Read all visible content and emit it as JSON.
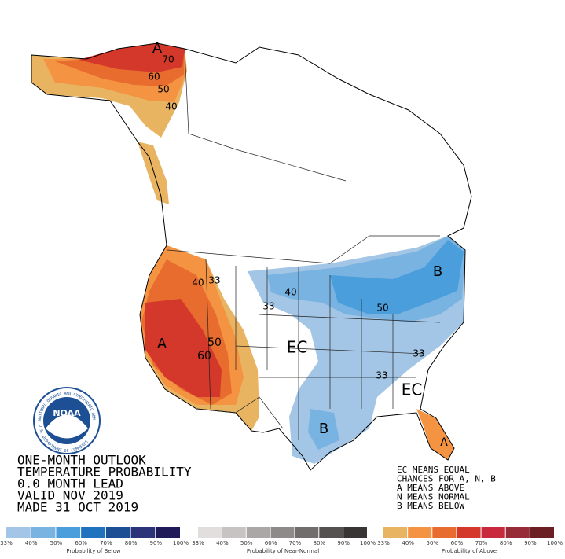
{
  "outlook_text": [
    "ONE-MONTH OUTLOOK",
    "TEMPERATURE PROBABILITY",
    "0.0 MONTH LEAD",
    "VALID NOV 2019",
    "MADE 31 OCT 2019"
  ],
  "key_text": [
    "EC MEANS EQUAL",
    "CHANCES FOR A, N, B",
    "A MEANS ABOVE",
    "N MEANS NORMAL",
    "B MEANS BELOW"
  ],
  "logo": {
    "name": "NOAA",
    "ring_top": "NATIONAL OCEANIC AND ATMOSPHERIC ADMINISTRATION",
    "ring_bottom": "U.S. DEPARTMENT OF COMMERCE"
  },
  "map_labels": [
    "A",
    "70",
    "60",
    "50",
    "40",
    "40",
    "33",
    "A",
    "50",
    "60",
    "33",
    "40",
    "50",
    "B",
    "EC",
    "33",
    "33",
    "EC",
    "B",
    "A"
  ],
  "legend": [
    {
      "title": "Probability of Below",
      "ticks": [
        "33%",
        "40%",
        "50%",
        "60%",
        "70%",
        "80%",
        "90%",
        "100%"
      ],
      "colors": [
        "#a3c6e6",
        "#79b3e2",
        "#4a9edc",
        "#1f72bd",
        "#1d4f94",
        "#2c3479",
        "#201a58"
      ]
    },
    {
      "title": "Probability of Near-Normal",
      "ticks": [
        "33%",
        "40%",
        "50%",
        "60%",
        "70%",
        "80%",
        "90%",
        "100%"
      ],
      "colors": [
        "#e2dede",
        "#c7c3c3",
        "#aba7a7",
        "#8e8a8a",
        "#716d6d",
        "#555151",
        "#393535"
      ]
    },
    {
      "title": "Probability of Above",
      "ticks": [
        "33%",
        "40%",
        "50%",
        "60%",
        "70%",
        "80%",
        "90%",
        "100%"
      ],
      "colors": [
        "#e9b462",
        "#f49442",
        "#e86c2d",
        "#d4382a",
        "#c9293d",
        "#972b37",
        "#6b1f23"
      ]
    }
  ]
}
